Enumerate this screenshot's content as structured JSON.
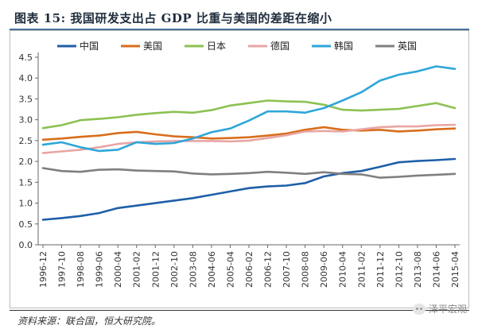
{
  "title": "图表 15: 我国研发支出占 GDP 比重与美国的差距在缩小",
  "source": "资料来源：联合国，恒大研究院。",
  "watermark": "泽平宏观",
  "chart_data": {
    "type": "line",
    "title": "图表 15: 我国研发支出占 GDP 比重与美国的差距在缩小",
    "xlabel": "",
    "ylabel": "",
    "ylim": [
      0,
      4.5
    ],
    "yticks": [
      "0.0",
      "0.5",
      "1.0",
      "1.5",
      "2.0",
      "2.5",
      "3.0",
      "3.5",
      "4.0",
      "4.5"
    ],
    "grid": false,
    "legend_position": "top",
    "x": [
      "1996-12",
      "1997-10",
      "1998-08",
      "1999-06",
      "2000-04",
      "2001-02",
      "2001-12",
      "2002-10",
      "2003-08",
      "2004-06",
      "2005-04",
      "2006-02",
      "2006-12",
      "2007-10",
      "2008-08",
      "2009-06",
      "2010-04",
      "2011-02",
      "2011-12",
      "2012-10",
      "2013-08",
      "2014-06",
      "2015-04"
    ],
    "series": [
      {
        "name": "中国",
        "color": "#1f5fa8",
        "values": [
          0.6,
          0.64,
          0.69,
          0.76,
          0.88,
          0.94,
          1.0,
          1.06,
          1.12,
          1.2,
          1.28,
          1.36,
          1.4,
          1.42,
          1.48,
          1.64,
          1.72,
          1.77,
          1.87,
          1.98,
          2.01,
          2.03,
          2.06
        ]
      },
      {
        "name": "美国",
        "color": "#d86e1c",
        "values": [
          2.52,
          2.55,
          2.59,
          2.62,
          2.68,
          2.71,
          2.65,
          2.6,
          2.58,
          2.55,
          2.56,
          2.58,
          2.62,
          2.67,
          2.76,
          2.82,
          2.76,
          2.74,
          2.76,
          2.72,
          2.74,
          2.77,
          2.79
        ]
      },
      {
        "name": "日本",
        "color": "#8cc152",
        "values": [
          2.8,
          2.87,
          2.99,
          3.02,
          3.06,
          3.12,
          3.16,
          3.19,
          3.17,
          3.23,
          3.34,
          3.4,
          3.46,
          3.44,
          3.43,
          3.36,
          3.24,
          3.22,
          3.24,
          3.26,
          3.33,
          3.4,
          3.28
        ]
      },
      {
        "name": "德国",
        "color": "#e8a5a5",
        "values": [
          2.2,
          2.24,
          2.28,
          2.34,
          2.42,
          2.46,
          2.48,
          2.49,
          2.49,
          2.49,
          2.48,
          2.5,
          2.56,
          2.63,
          2.72,
          2.73,
          2.72,
          2.77,
          2.82,
          2.84,
          2.84,
          2.87,
          2.88
        ]
      },
      {
        "name": "韩国",
        "color": "#2ea6d9",
        "values": [
          2.4,
          2.46,
          2.34,
          2.25,
          2.28,
          2.46,
          2.42,
          2.44,
          2.55,
          2.7,
          2.79,
          2.98,
          3.2,
          3.2,
          3.17,
          3.28,
          3.46,
          3.66,
          3.94,
          4.08,
          4.16,
          4.28,
          4.22
        ]
      },
      {
        "name": "英国",
        "color": "#7f7f7f",
        "values": [
          1.84,
          1.77,
          1.75,
          1.8,
          1.81,
          1.78,
          1.77,
          1.76,
          1.71,
          1.69,
          1.7,
          1.72,
          1.75,
          1.73,
          1.7,
          1.74,
          1.7,
          1.69,
          1.61,
          1.63,
          1.66,
          1.68,
          1.7
        ]
      }
    ]
  }
}
